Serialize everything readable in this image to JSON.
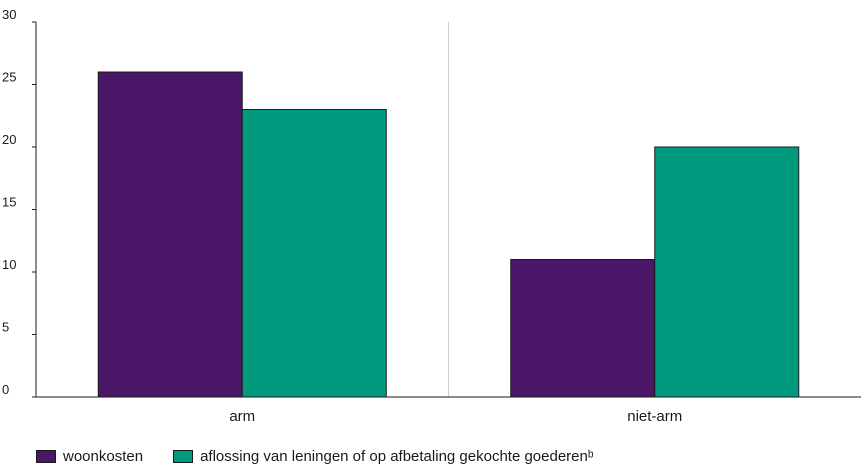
{
  "chart_data": {
    "type": "bar",
    "categories": [
      "arm",
      "niet-arm"
    ],
    "series": [
      {
        "name": "woonkosten",
        "values": [
          26,
          11
        ],
        "color": "#4a1768"
      },
      {
        "name": "aflossing van leningen of op afbetaling gekochte goederenᵇ",
        "values": [
          23,
          20
        ],
        "color": "#009a7e"
      }
    ],
    "ylim": [
      0,
      30
    ],
    "yticks": [
      0,
      5,
      10,
      15,
      20,
      25,
      30
    ],
    "grid": "vertical-category-separator",
    "legend_position": "bottom-left"
  }
}
